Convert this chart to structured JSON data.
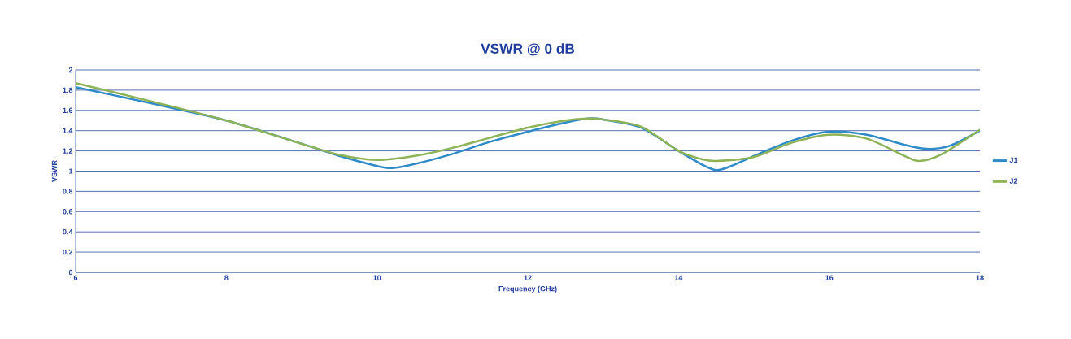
{
  "chart_data": {
    "type": "line",
    "title": "VSWR @ 0 dB",
    "xlabel": "Frequency (GHz)",
    "ylabel": "VSWR",
    "xlim": [
      6,
      18
    ],
    "xticks": [
      6,
      8,
      10,
      12,
      14,
      16,
      18
    ],
    "ylim": [
      0,
      2
    ],
    "yticks": [
      0,
      0.2,
      0.4,
      0.6,
      0.8,
      1,
      1.2,
      1.4,
      1.6,
      1.8,
      2
    ],
    "grid": "y",
    "legend": "right",
    "marker": "none",
    "line_style": "solid",
    "series": [
      {
        "name": "J1",
        "color": "#2e8bc8",
        "x": [
          6,
          7,
          8,
          9,
          9.5,
          10,
          10.2,
          10.5,
          11,
          11.5,
          12,
          12.5,
          12.8,
          13,
          13.5,
          14,
          14.3,
          14.5,
          14.7,
          15,
          15.5,
          16,
          16.5,
          17,
          17.3,
          17.6,
          18
        ],
        "values": [
          1.83,
          1.67,
          1.5,
          1.27,
          1.15,
          1.05,
          1.03,
          1.07,
          1.17,
          1.29,
          1.39,
          1.48,
          1.52,
          1.51,
          1.43,
          1.2,
          1.07,
          1.01,
          1.05,
          1.15,
          1.3,
          1.39,
          1.36,
          1.26,
          1.22,
          1.25,
          1.4
        ]
      },
      {
        "name": "J2",
        "color": "#8db356",
        "x": [
          6,
          7,
          8,
          9,
          9.5,
          10,
          10.5,
          11,
          11.5,
          12,
          12.5,
          12.8,
          13,
          13.5,
          14,
          14.3,
          14.5,
          15,
          15.5,
          16,
          16.5,
          17,
          17.2,
          17.5,
          18
        ],
        "values": [
          1.87,
          1.69,
          1.5,
          1.27,
          1.16,
          1.11,
          1.15,
          1.23,
          1.33,
          1.43,
          1.5,
          1.52,
          1.51,
          1.44,
          1.2,
          1.12,
          1.1,
          1.14,
          1.28,
          1.36,
          1.32,
          1.15,
          1.1,
          1.17,
          1.41
        ]
      }
    ]
  }
}
